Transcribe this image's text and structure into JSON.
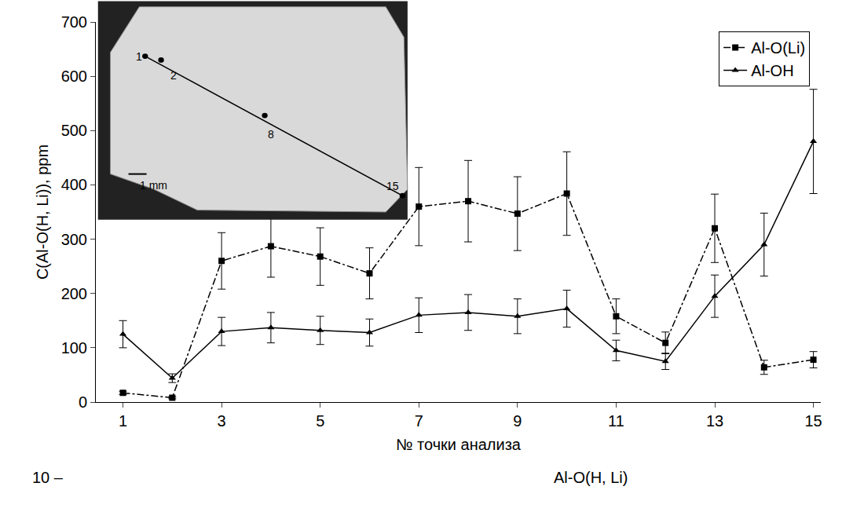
{
  "chart_data": {
    "type": "line",
    "x_label": "№ точки анализа",
    "y_label": "C(Al-O(H, Li)), ppm",
    "x": [
      1,
      2,
      3,
      4,
      5,
      6,
      7,
      8,
      9,
      10,
      11,
      12,
      13,
      14,
      15
    ],
    "series": [
      {
        "name": "Al-O(Li)",
        "color": "#000000",
        "marker": "square",
        "line_style": "dashdot",
        "values": [
          17,
          8,
          260,
          287,
          268,
          237,
          360,
          370,
          347,
          384,
          158,
          109,
          320,
          64,
          78
        ],
        "errors": [
          3,
          2,
          52,
          57,
          53,
          47,
          72,
          75,
          68,
          77,
          32,
          20,
          63,
          13,
          15
        ]
      },
      {
        "name": "Al-OH",
        "color": "#000000",
        "marker": "triangle-up",
        "line_style": "solid",
        "values": [
          125,
          44,
          130,
          137,
          132,
          128,
          160,
          165,
          158,
          172,
          95,
          75,
          195,
          290,
          480
        ],
        "errors": [
          25,
          8,
          26,
          28,
          26,
          25,
          32,
          33,
          32,
          34,
          19,
          15,
          39,
          58,
          96
        ]
      }
    ],
    "xlim": [
      0.45,
      15.15
    ],
    "xticks": [
      1,
      3,
      5,
      7,
      9,
      11,
      13,
      15
    ],
    "ylim": [
      0,
      700
    ],
    "yticks": [
      0,
      100,
      200,
      300,
      400,
      500,
      600,
      700
    ],
    "grid": false,
    "legend": "top-right",
    "inset": {
      "point_labels": [
        "1",
        "2",
        "8",
        "15"
      ],
      "scale_label": "1 mm"
    },
    "annotations": [
      "10 –",
      "Al-O(H, Li)"
    ]
  }
}
